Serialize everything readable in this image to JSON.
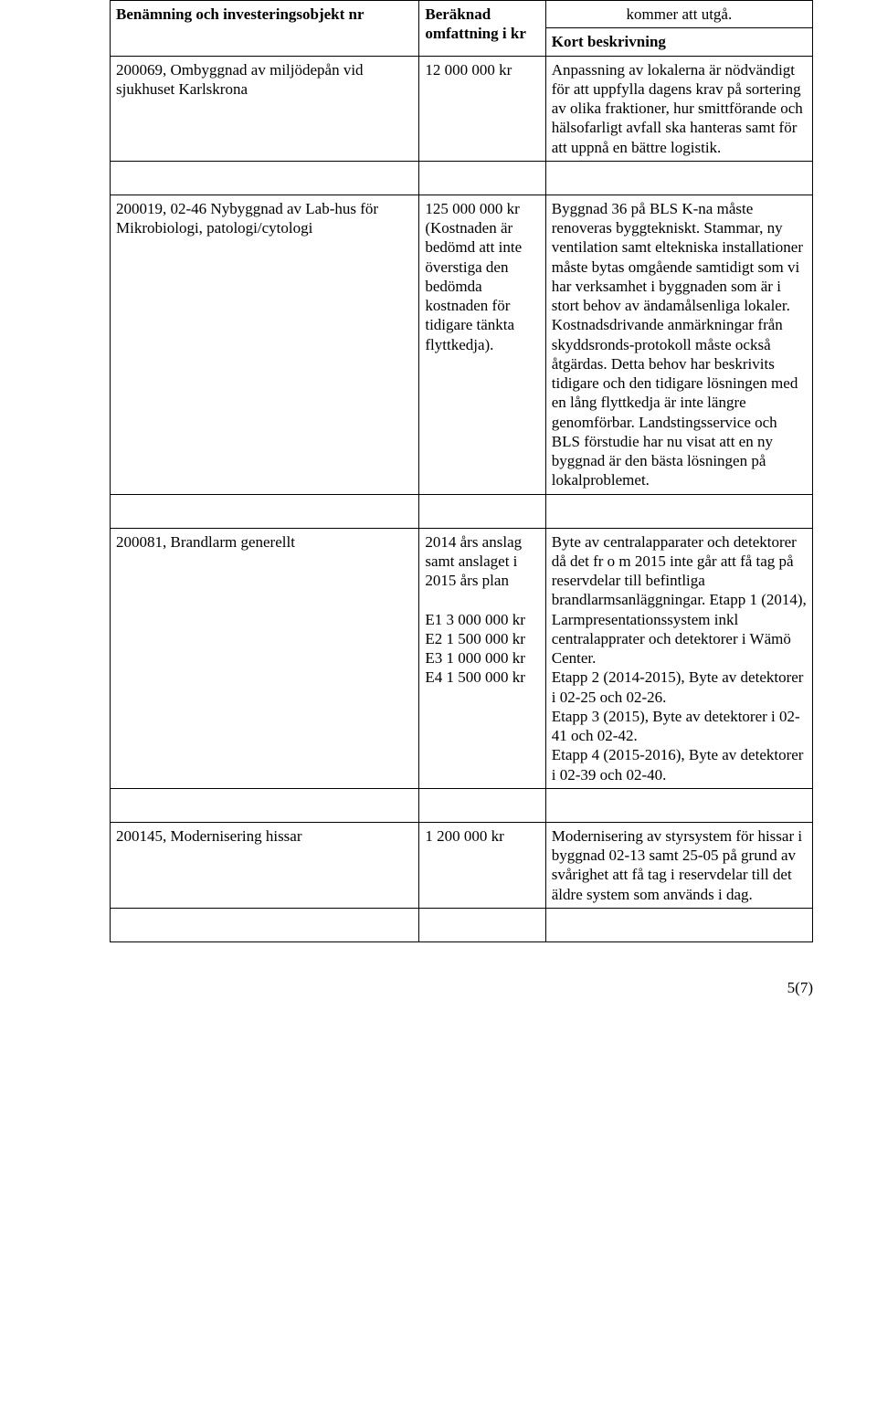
{
  "header": {
    "col1": "Benämning och investeringsobjekt nr",
    "col2": "Beräknad omfattning i kr",
    "col3_line1": "kommer att utgå.",
    "col3_line2": "Kort beskrivning"
  },
  "rows": [
    {
      "name": "200069, Ombyggnad av miljödepån vid sjukhuset Karlskrona",
      "amount": "12 000 000 kr",
      "desc": "Anpassning av lokalerna är nödvändigt för att uppfylla dagens krav på sortering av olika fraktioner, hur smittförande och hälsofarligt avfall ska hanteras samt för att uppnå en bättre logistik."
    },
    {
      "name": "200019, 02-46 Nybyggnad av Lab-hus för Mikrobiologi, patologi/cytologi",
      "amount": "125 000 000 kr (Kostnaden är bedömd att inte överstiga den bedömda kostnaden för tidigare tänkta flyttkedja).",
      "desc": "Byggnad 36 på BLS K-na måste renoveras byggtekniskt. Stammar, ny ventilation samt eltekniska installationer måste bytas omgående samtidigt som vi har verksamhet i byggnaden som är i stort behov av ändamålsenliga lokaler. Kostnadsdrivande anmärkningar från skyddsronds-protokoll måste också åtgärdas. Detta behov har beskrivits tidigare och den tidigare lösningen med en lång flyttkedja är inte längre genomförbar. Landstingsservice och BLS förstudie har nu visat att en ny byggnad är den bästa lösningen på lokalproblemet."
    },
    {
      "name": "200081, Brandlarm generellt",
      "amount": "2014 års anslag samt anslaget i 2015 års plan\n\nE1 3 000 000 kr\nE2 1 500 000 kr\nE3 1 000 000 kr\nE4 1 500 000 kr",
      "desc": "Byte av centralapparater och detektorer då det fr o m 2015 inte går att få tag på reservdelar till befintliga brandlarmsanläggningar. Etapp 1 (2014), Larmpresentationssystem inkl centralapprater och detektorer i Wämö Center.\nEtapp 2 (2014-2015), Byte av detektorer i 02-25 och 02-26.\nEtapp 3 (2015), Byte av detektorer i 02-41 och 02-42.\nEtapp 4 (2015-2016), Byte av detektorer i 02-39 och 02-40."
    },
    {
      "name": "200145, Modernisering hissar",
      "amount": "1 200 000 kr",
      "desc": "Modernisering av styrsystem för hissar i byggnad 02-13 samt 25-05 på grund av svårighet att få tag i reservdelar till det äldre system som används i dag."
    }
  ],
  "footer": "5(7)"
}
